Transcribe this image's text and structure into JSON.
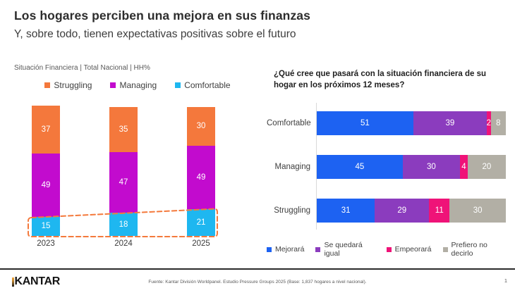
{
  "header": {
    "title": "Los hogares perciben una mejora en sus finanzas",
    "subtitle": "Y, sobre todo, tienen expectativas positivas sobre el futuro"
  },
  "chart_data": [
    {
      "type": "bar",
      "stacked": true,
      "orientation": "vertical",
      "title": "Situación Financiera | Total Nacional | HH%",
      "categories": [
        "2023",
        "2024",
        "2025"
      ],
      "series": [
        {
          "name": "Struggling",
          "color": "#f4783c",
          "values": [
            37,
            35,
            30
          ]
        },
        {
          "name": "Managing",
          "color": "#c20bce",
          "values": [
            49,
            47,
            49
          ]
        },
        {
          "name": "Comfortable",
          "color": "#1eb7f0",
          "values": [
            15,
            18,
            21
          ]
        }
      ],
      "series_order": "top-to-bottom",
      "value_labels": "inside-white",
      "legend_position": "top",
      "ylim": [
        0,
        101
      ],
      "annotation": "dashed outline highlighting growth of Comfortable segment 15 → 18 → 21",
      "highlight_color": "#f4793b"
    },
    {
      "type": "bar",
      "stacked": true,
      "orientation": "horizontal",
      "title": "¿Qué cree que pasará con la situación financiera de su hogar en los próximos 12 meses?",
      "categories": [
        "Comfortable",
        "Managing",
        "Struggling"
      ],
      "series": [
        {
          "name": "Mejorará",
          "color": "#1d62f2",
          "values": [
            51,
            45,
            31
          ]
        },
        {
          "name": "Se quedará igual",
          "color": "#8b3cbe",
          "values": [
            39,
            30,
            29
          ]
        },
        {
          "name": "Empeorará",
          "color": "#ef1378",
          "values": [
            2,
            4,
            11
          ]
        },
        {
          "name": "Prefiero no decirlo",
          "color": "#b2afa5",
          "values": [
            8,
            20,
            30
          ]
        }
      ],
      "value_labels": "inside-white",
      "legend_position": "bottom",
      "xlim": [
        0,
        100
      ],
      "grid": false
    }
  ],
  "footer": {
    "logo": "KANTAR",
    "source": "Fuente: Kantar División Worldpanel. Estudio Pressure Groups 2025 (Base: 1,837 hogares a nivel nacional).",
    "page": "1"
  }
}
